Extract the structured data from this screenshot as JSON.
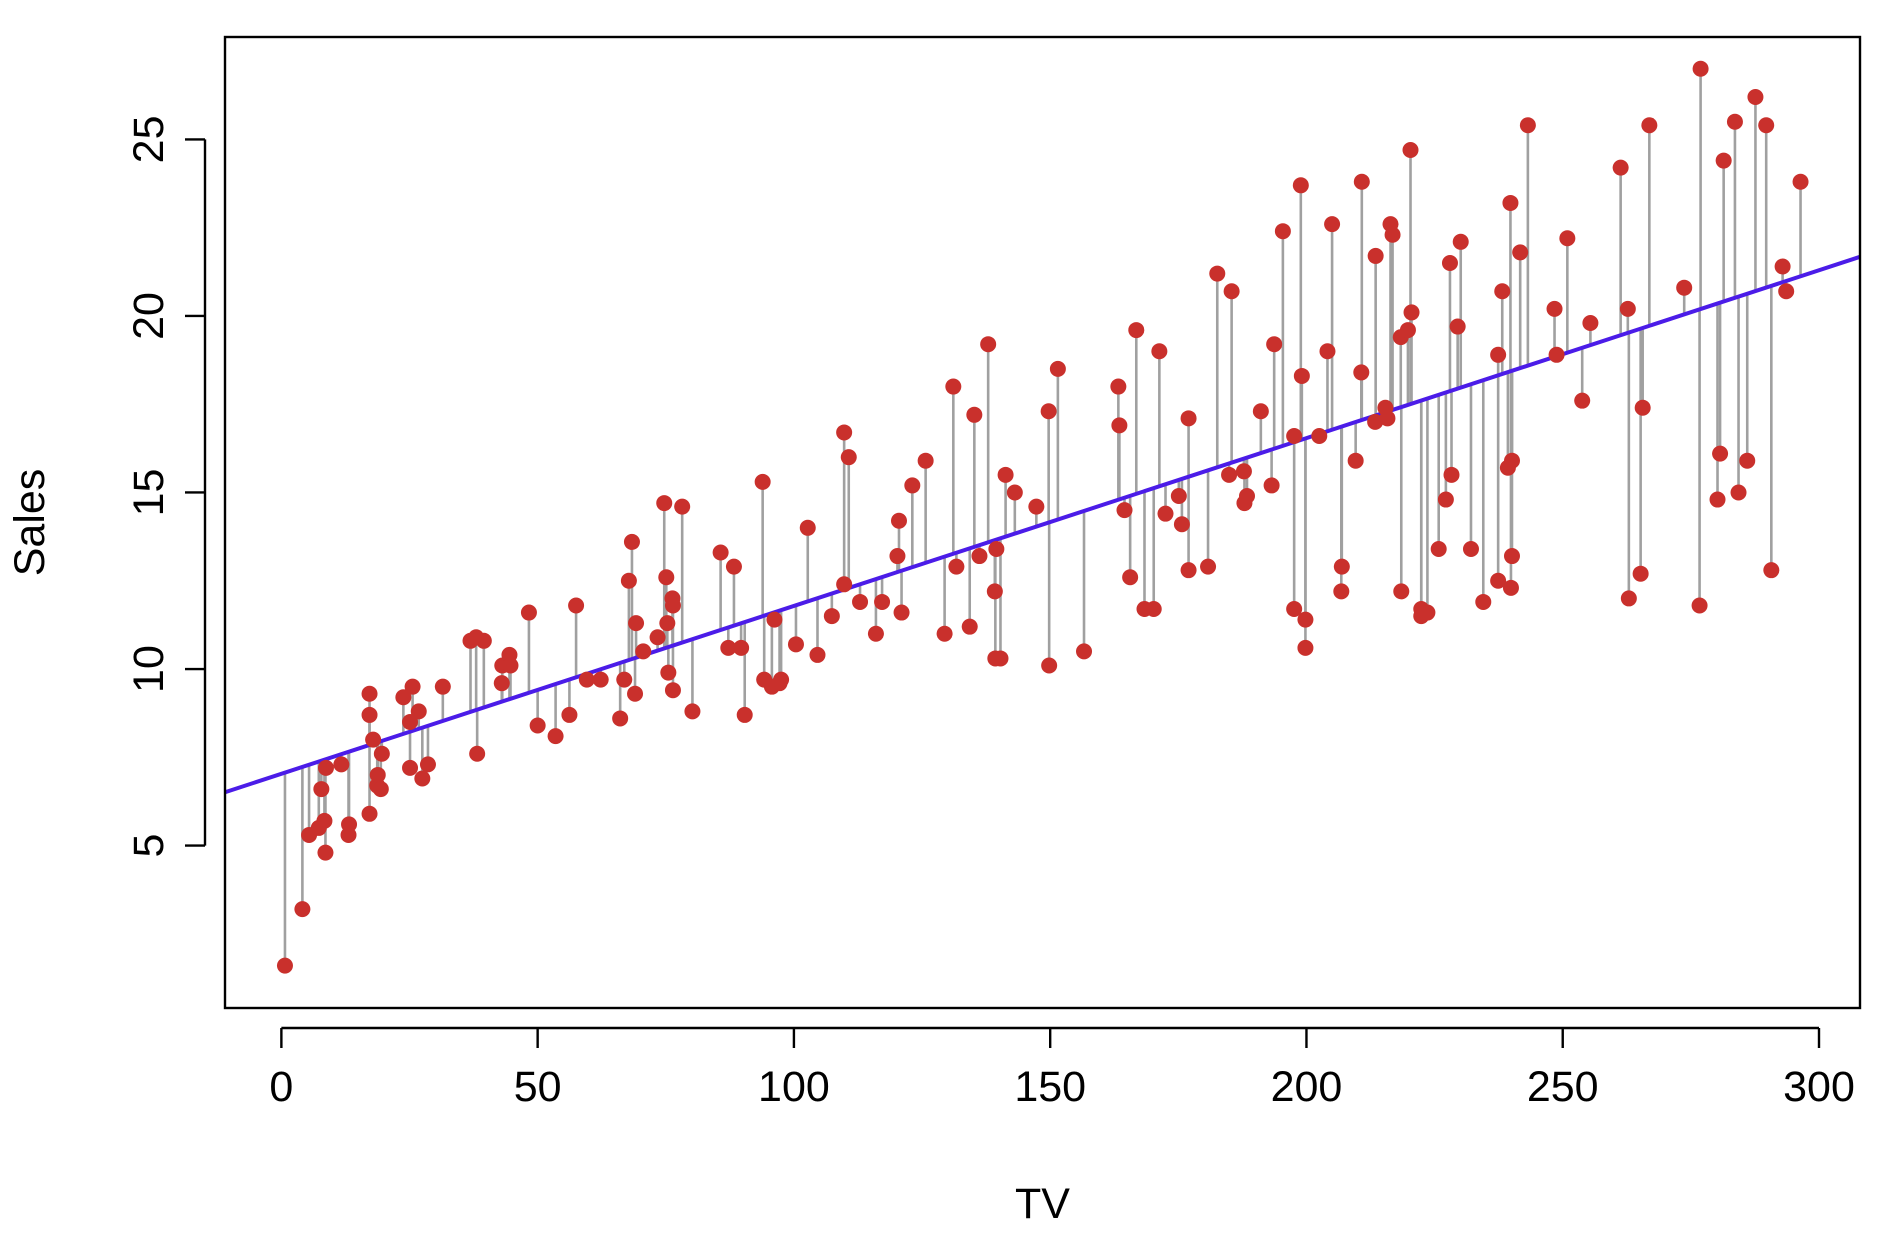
{
  "chart_data": {
    "type": "scatter",
    "title": "",
    "xlabel": "TV",
    "ylabel": "Sales",
    "xlim": [
      -11,
      308
    ],
    "ylim": [
      0.4,
      27.9
    ],
    "x_ticks": [
      0,
      50,
      100,
      150,
      200,
      250,
      300
    ],
    "y_ticks": [
      5,
      10,
      15,
      20,
      25
    ],
    "x_tick_labels": [
      "0",
      "50",
      "100",
      "150",
      "200",
      "250",
      "300"
    ],
    "y_tick_labels": [
      "5",
      "10",
      "15",
      "20",
      "25"
    ],
    "grid": false,
    "legend": "none",
    "regression_line": {
      "intercept": 7.0326,
      "slope": 0.047537
    },
    "colors": {
      "points": "#c9302c",
      "residuals": "#a0a0a0",
      "fit_line": "#4b1ce8",
      "axes": "#000000"
    },
    "points": [
      [
        0.7,
        1.6
      ],
      [
        4.1,
        3.2
      ],
      [
        5.4,
        5.3
      ],
      [
        7.3,
        5.5
      ],
      [
        7.8,
        6.6
      ],
      [
        8.4,
        5.7
      ],
      [
        8.6,
        4.8
      ],
      [
        8.7,
        7.2
      ],
      [
        11.7,
        7.3
      ],
      [
        13.1,
        5.3
      ],
      [
        13.2,
        5.6
      ],
      [
        17.2,
        8.7
      ],
      [
        17.2,
        9.3
      ],
      [
        17.2,
        5.9
      ],
      [
        17.9,
        8.0
      ],
      [
        18.7,
        6.7
      ],
      [
        18.8,
        7.0
      ],
      [
        19.4,
        6.6
      ],
      [
        19.6,
        7.6
      ],
      [
        23.8,
        9.2
      ],
      [
        25.1,
        7.2
      ],
      [
        25.1,
        8.5
      ],
      [
        25.6,
        9.5
      ],
      [
        26.8,
        8.8
      ],
      [
        27.5,
        6.9
      ],
      [
        28.6,
        7.3
      ],
      [
        31.5,
        9.5
      ],
      [
        36.9,
        10.8
      ],
      [
        38.0,
        10.9
      ],
      [
        38.2,
        7.6
      ],
      [
        39.5,
        10.8
      ],
      [
        43.0,
        9.6
      ],
      [
        43.1,
        10.1
      ],
      [
        44.5,
        10.4
      ],
      [
        44.7,
        10.1
      ],
      [
        48.3,
        11.6
      ],
      [
        50.0,
        8.4
      ],
      [
        53.5,
        8.1
      ],
      [
        56.2,
        8.7
      ],
      [
        57.5,
        11.8
      ],
      [
        59.6,
        9.7
      ],
      [
        62.3,
        9.7
      ],
      [
        66.1,
        8.6
      ],
      [
        66.9,
        9.7
      ],
      [
        67.8,
        12.5
      ],
      [
        68.4,
        13.6
      ],
      [
        69.0,
        9.3
      ],
      [
        69.2,
        11.3
      ],
      [
        70.6,
        10.5
      ],
      [
        73.4,
        10.9
      ],
      [
        74.7,
        14.7
      ],
      [
        75.1,
        12.6
      ],
      [
        75.3,
        11.3
      ],
      [
        75.5,
        9.9
      ],
      [
        76.3,
        12.0
      ],
      [
        76.4,
        9.4
      ],
      [
        76.4,
        11.8
      ],
      [
        78.2,
        14.6
      ],
      [
        80.2,
        8.8
      ],
      [
        85.7,
        13.3
      ],
      [
        87.2,
        10.6
      ],
      [
        88.3,
        12.9
      ],
      [
        89.7,
        10.6
      ],
      [
        90.4,
        8.7
      ],
      [
        93.9,
        15.3
      ],
      [
        94.2,
        9.7
      ],
      [
        95.7,
        9.5
      ],
      [
        96.2,
        11.4
      ],
      [
        97.2,
        9.6
      ],
      [
        97.5,
        9.7
      ],
      [
        100.4,
        10.7
      ],
      [
        102.7,
        14.0
      ],
      [
        104.6,
        10.4
      ],
      [
        107.4,
        11.5
      ],
      [
        109.8,
        12.4
      ],
      [
        109.8,
        16.7
      ],
      [
        110.7,
        16.0
      ],
      [
        112.9,
        11.9
      ],
      [
        116.0,
        11.0
      ],
      [
        117.2,
        11.9
      ],
      [
        120.2,
        13.2
      ],
      [
        120.5,
        14.2
      ],
      [
        121.0,
        11.6
      ],
      [
        123.1,
        15.2
      ],
      [
        125.7,
        15.9
      ],
      [
        129.4,
        11.0
      ],
      [
        131.1,
        18.0
      ],
      [
        131.7,
        12.9
      ],
      [
        134.3,
        11.2
      ],
      [
        135.2,
        17.2
      ],
      [
        136.2,
        13.2
      ],
      [
        137.9,
        19.2
      ],
      [
        139.2,
        12.2
      ],
      [
        139.3,
        10.3
      ],
      [
        139.5,
        13.4
      ],
      [
        140.3,
        10.3
      ],
      [
        141.3,
        15.5
      ],
      [
        143.1,
        15.0
      ],
      [
        147.3,
        14.6
      ],
      [
        149.7,
        17.3
      ],
      [
        149.8,
        10.1
      ],
      [
        151.5,
        18.5
      ],
      [
        156.6,
        10.5
      ],
      [
        163.3,
        18.0
      ],
      [
        163.5,
        16.9
      ],
      [
        164.5,
        14.5
      ],
      [
        166.8,
        19.6
      ],
      [
        165.6,
        12.6
      ],
      [
        168.4,
        11.7
      ],
      [
        170.2,
        11.7
      ],
      [
        171.3,
        19.0
      ],
      [
        172.5,
        14.4
      ],
      [
        175.1,
        14.9
      ],
      [
        175.7,
        14.1
      ],
      [
        177.0,
        17.1
      ],
      [
        177.0,
        12.8
      ],
      [
        180.8,
        12.9
      ],
      [
        182.6,
        21.2
      ],
      [
        184.9,
        15.5
      ],
      [
        185.4,
        20.7
      ],
      [
        187.8,
        15.6
      ],
      [
        187.9,
        14.7
      ],
      [
        188.4,
        14.9
      ],
      [
        191.1,
        17.3
      ],
      [
        193.2,
        15.2
      ],
      [
        193.7,
        19.2
      ],
      [
        195.4,
        22.4
      ],
      [
        197.6,
        11.7
      ],
      [
        197.6,
        16.6
      ],
      [
        198.9,
        23.7
      ],
      [
        199.1,
        18.3
      ],
      [
        199.8,
        11.4
      ],
      [
        199.8,
        10.6
      ],
      [
        202.5,
        16.6
      ],
      [
        204.1,
        19.0
      ],
      [
        205.0,
        22.6
      ],
      [
        206.8,
        12.2
      ],
      [
        206.9,
        12.9
      ],
      [
        209.6,
        15.9
      ],
      [
        210.7,
        18.4
      ],
      [
        210.8,
        23.8
      ],
      [
        213.4,
        17.0
      ],
      [
        213.5,
        21.7
      ],
      [
        215.4,
        17.4
      ],
      [
        215.8,
        17.1
      ],
      [
        216.4,
        22.6
      ],
      [
        216.8,
        22.3
      ],
      [
        218.4,
        19.4
      ],
      [
        218.5,
        12.2
      ],
      [
        219.8,
        19.6
      ],
      [
        220.3,
        24.7
      ],
      [
        220.5,
        20.1
      ],
      [
        222.4,
        11.7
      ],
      [
        222.4,
        11.5
      ],
      [
        223.6,
        11.6
      ],
      [
        225.8,
        13.4
      ],
      [
        227.2,
        14.8
      ],
      [
        228.0,
        21.5
      ],
      [
        228.3,
        15.5
      ],
      [
        229.5,
        19.7
      ],
      [
        230.1,
        22.1
      ],
      [
        232.1,
        13.4
      ],
      [
        234.5,
        11.9
      ],
      [
        237.4,
        12.5
      ],
      [
        237.4,
        18.9
      ],
      [
        238.2,
        20.7
      ],
      [
        239.3,
        15.7
      ],
      [
        239.8,
        23.2
      ],
      [
        239.9,
        12.3
      ],
      [
        240.1,
        13.2
      ],
      [
        240.1,
        15.9
      ],
      [
        241.7,
        21.8
      ],
      [
        243.2,
        25.4
      ],
      [
        248.4,
        20.2
      ],
      [
        248.8,
        18.9
      ],
      [
        250.9,
        22.2
      ],
      [
        253.8,
        17.6
      ],
      [
        255.4,
        19.8
      ],
      [
        261.3,
        24.2
      ],
      [
        262.7,
        20.2
      ],
      [
        262.9,
        12.0
      ],
      [
        265.2,
        12.7
      ],
      [
        265.6,
        17.4
      ],
      [
        266.9,
        25.4
      ],
      [
        273.7,
        20.8
      ],
      [
        276.7,
        11.8
      ],
      [
        276.9,
        27.0
      ],
      [
        280.2,
        14.8
      ],
      [
        280.7,
        16.1
      ],
      [
        281.4,
        24.4
      ],
      [
        283.6,
        25.5
      ],
      [
        284.3,
        15.0
      ],
      [
        286.0,
        15.9
      ],
      [
        287.6,
        26.2
      ],
      [
        289.7,
        25.4
      ],
      [
        290.7,
        12.8
      ],
      [
        292.9,
        21.4
      ],
      [
        293.6,
        20.7
      ],
      [
        296.4,
        23.8
      ]
    ]
  }
}
